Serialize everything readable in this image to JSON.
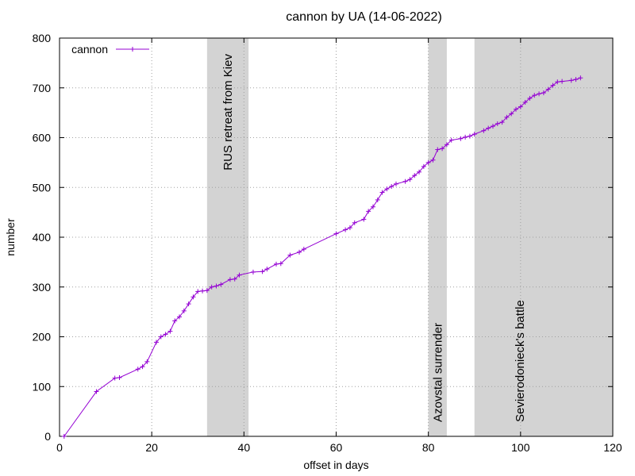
{
  "chart_data": {
    "type": "line",
    "title": "cannon by UA (14-06-2022)",
    "xlabel": "offset in days",
    "ylabel": "number",
    "xlim": [
      0,
      120
    ],
    "ylim": [
      0,
      800
    ],
    "xticks": [
      0,
      20,
      40,
      60,
      80,
      100,
      120
    ],
    "yticks": [
      0,
      100,
      200,
      300,
      400,
      500,
      600,
      700,
      800
    ],
    "grid": true,
    "legend_position": "top-left",
    "series": [
      {
        "name": "cannon",
        "color": "#9400d3",
        "marker": "plus",
        "points": [
          [
            1,
            0
          ],
          [
            8,
            90
          ],
          [
            12,
            117
          ],
          [
            13,
            118
          ],
          [
            17,
            135
          ],
          [
            18,
            140
          ],
          [
            19,
            150
          ],
          [
            21,
            189
          ],
          [
            22,
            200
          ],
          [
            23,
            205
          ],
          [
            24,
            211
          ],
          [
            25,
            232
          ],
          [
            26,
            240
          ],
          [
            27,
            252
          ],
          [
            28,
            266
          ],
          [
            29,
            280
          ],
          [
            30,
            291
          ],
          [
            31,
            292
          ],
          [
            32,
            293
          ],
          [
            33,
            300
          ],
          [
            34,
            302
          ],
          [
            35,
            305
          ],
          [
            37,
            315
          ],
          [
            38,
            316
          ],
          [
            39,
            324
          ],
          [
            42,
            330
          ],
          [
            44,
            331
          ],
          [
            45,
            336
          ],
          [
            47,
            346
          ],
          [
            48,
            347
          ],
          [
            50,
            364
          ],
          [
            52,
            370
          ],
          [
            53,
            376
          ],
          [
            60,
            407
          ],
          [
            62,
            415
          ],
          [
            63,
            419
          ],
          [
            64,
            429
          ],
          [
            66,
            436
          ],
          [
            67,
            452
          ],
          [
            68,
            461
          ],
          [
            69,
            475
          ],
          [
            70,
            490
          ],
          [
            71,
            497
          ],
          [
            72,
            502
          ],
          [
            73,
            507
          ],
          [
            75,
            512
          ],
          [
            76,
            516
          ],
          [
            77,
            524
          ],
          [
            78,
            531
          ],
          [
            79,
            542
          ],
          [
            80,
            550
          ],
          [
            81,
            555
          ],
          [
            82,
            576
          ],
          [
            83,
            578
          ],
          [
            84,
            586
          ],
          [
            85,
            595
          ],
          [
            87,
            598
          ],
          [
            88,
            601
          ],
          [
            89,
            603
          ],
          [
            90,
            607
          ],
          [
            92,
            614
          ],
          [
            93,
            619
          ],
          [
            94,
            623
          ],
          [
            95,
            628
          ],
          [
            96,
            631
          ],
          [
            97,
            641
          ],
          [
            98,
            648
          ],
          [
            99,
            657
          ],
          [
            100,
            662
          ],
          [
            101,
            671
          ],
          [
            102,
            679
          ],
          [
            103,
            685
          ],
          [
            104,
            688
          ],
          [
            105,
            690
          ],
          [
            106,
            697
          ],
          [
            107,
            705
          ],
          [
            108,
            712
          ],
          [
            109,
            713
          ],
          [
            111,
            715
          ],
          [
            112,
            717
          ],
          [
            113,
            720
          ]
        ]
      }
    ],
    "shaded_regions": [
      {
        "x0": 32,
        "x1": 41,
        "label": "RUS retreat from Kiev",
        "label_position": "top"
      },
      {
        "x0": 80,
        "x1": 84,
        "label": "Azovstal surrender",
        "label_position": "bottom"
      },
      {
        "x0": 90,
        "x1": 120,
        "label": "Sevierodonieck's battle",
        "label_position": "bottom"
      }
    ],
    "colors": {
      "line": "#9400d3",
      "shade": "#d3d3d3",
      "grid": "#a0a0a0",
      "axis": "#000000"
    }
  }
}
